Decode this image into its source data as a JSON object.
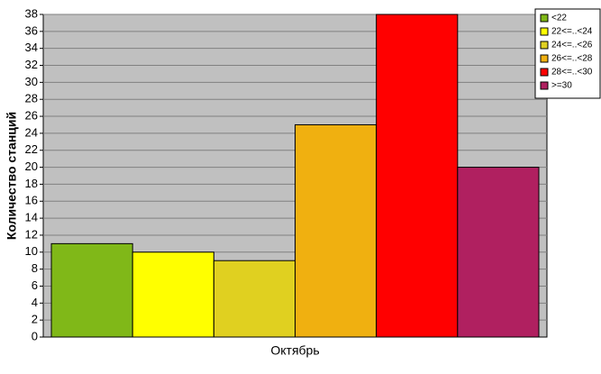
{
  "chart_data": {
    "type": "bar",
    "y_label": "Количество станций",
    "categories": [
      "Октябрь"
    ],
    "series": [
      {
        "name": "<22",
        "color": "#80b818",
        "values": [
          11
        ]
      },
      {
        "name": "22<=..<24",
        "color": "#ffff00",
        "values": [
          10
        ]
      },
      {
        "name": "24<=..<26",
        "color": "#e0d020",
        "values": [
          9
        ]
      },
      {
        "name": "26<=..<28",
        "color": "#f0b010",
        "values": [
          25
        ]
      },
      {
        "name": "28<=..<30",
        "color": "#ff0000",
        "values": [
          38
        ]
      },
      {
        "name": ">=30",
        "color": "#b02060",
        "values": [
          20
        ]
      }
    ],
    "ylim": [
      0,
      38
    ],
    "yticks": [
      0,
      2,
      4,
      6,
      8,
      10,
      12,
      14,
      16,
      18,
      20,
      22,
      24,
      26,
      28,
      30,
      32,
      34,
      36,
      38
    ],
    "grid": true,
    "legend": "top-right"
  }
}
